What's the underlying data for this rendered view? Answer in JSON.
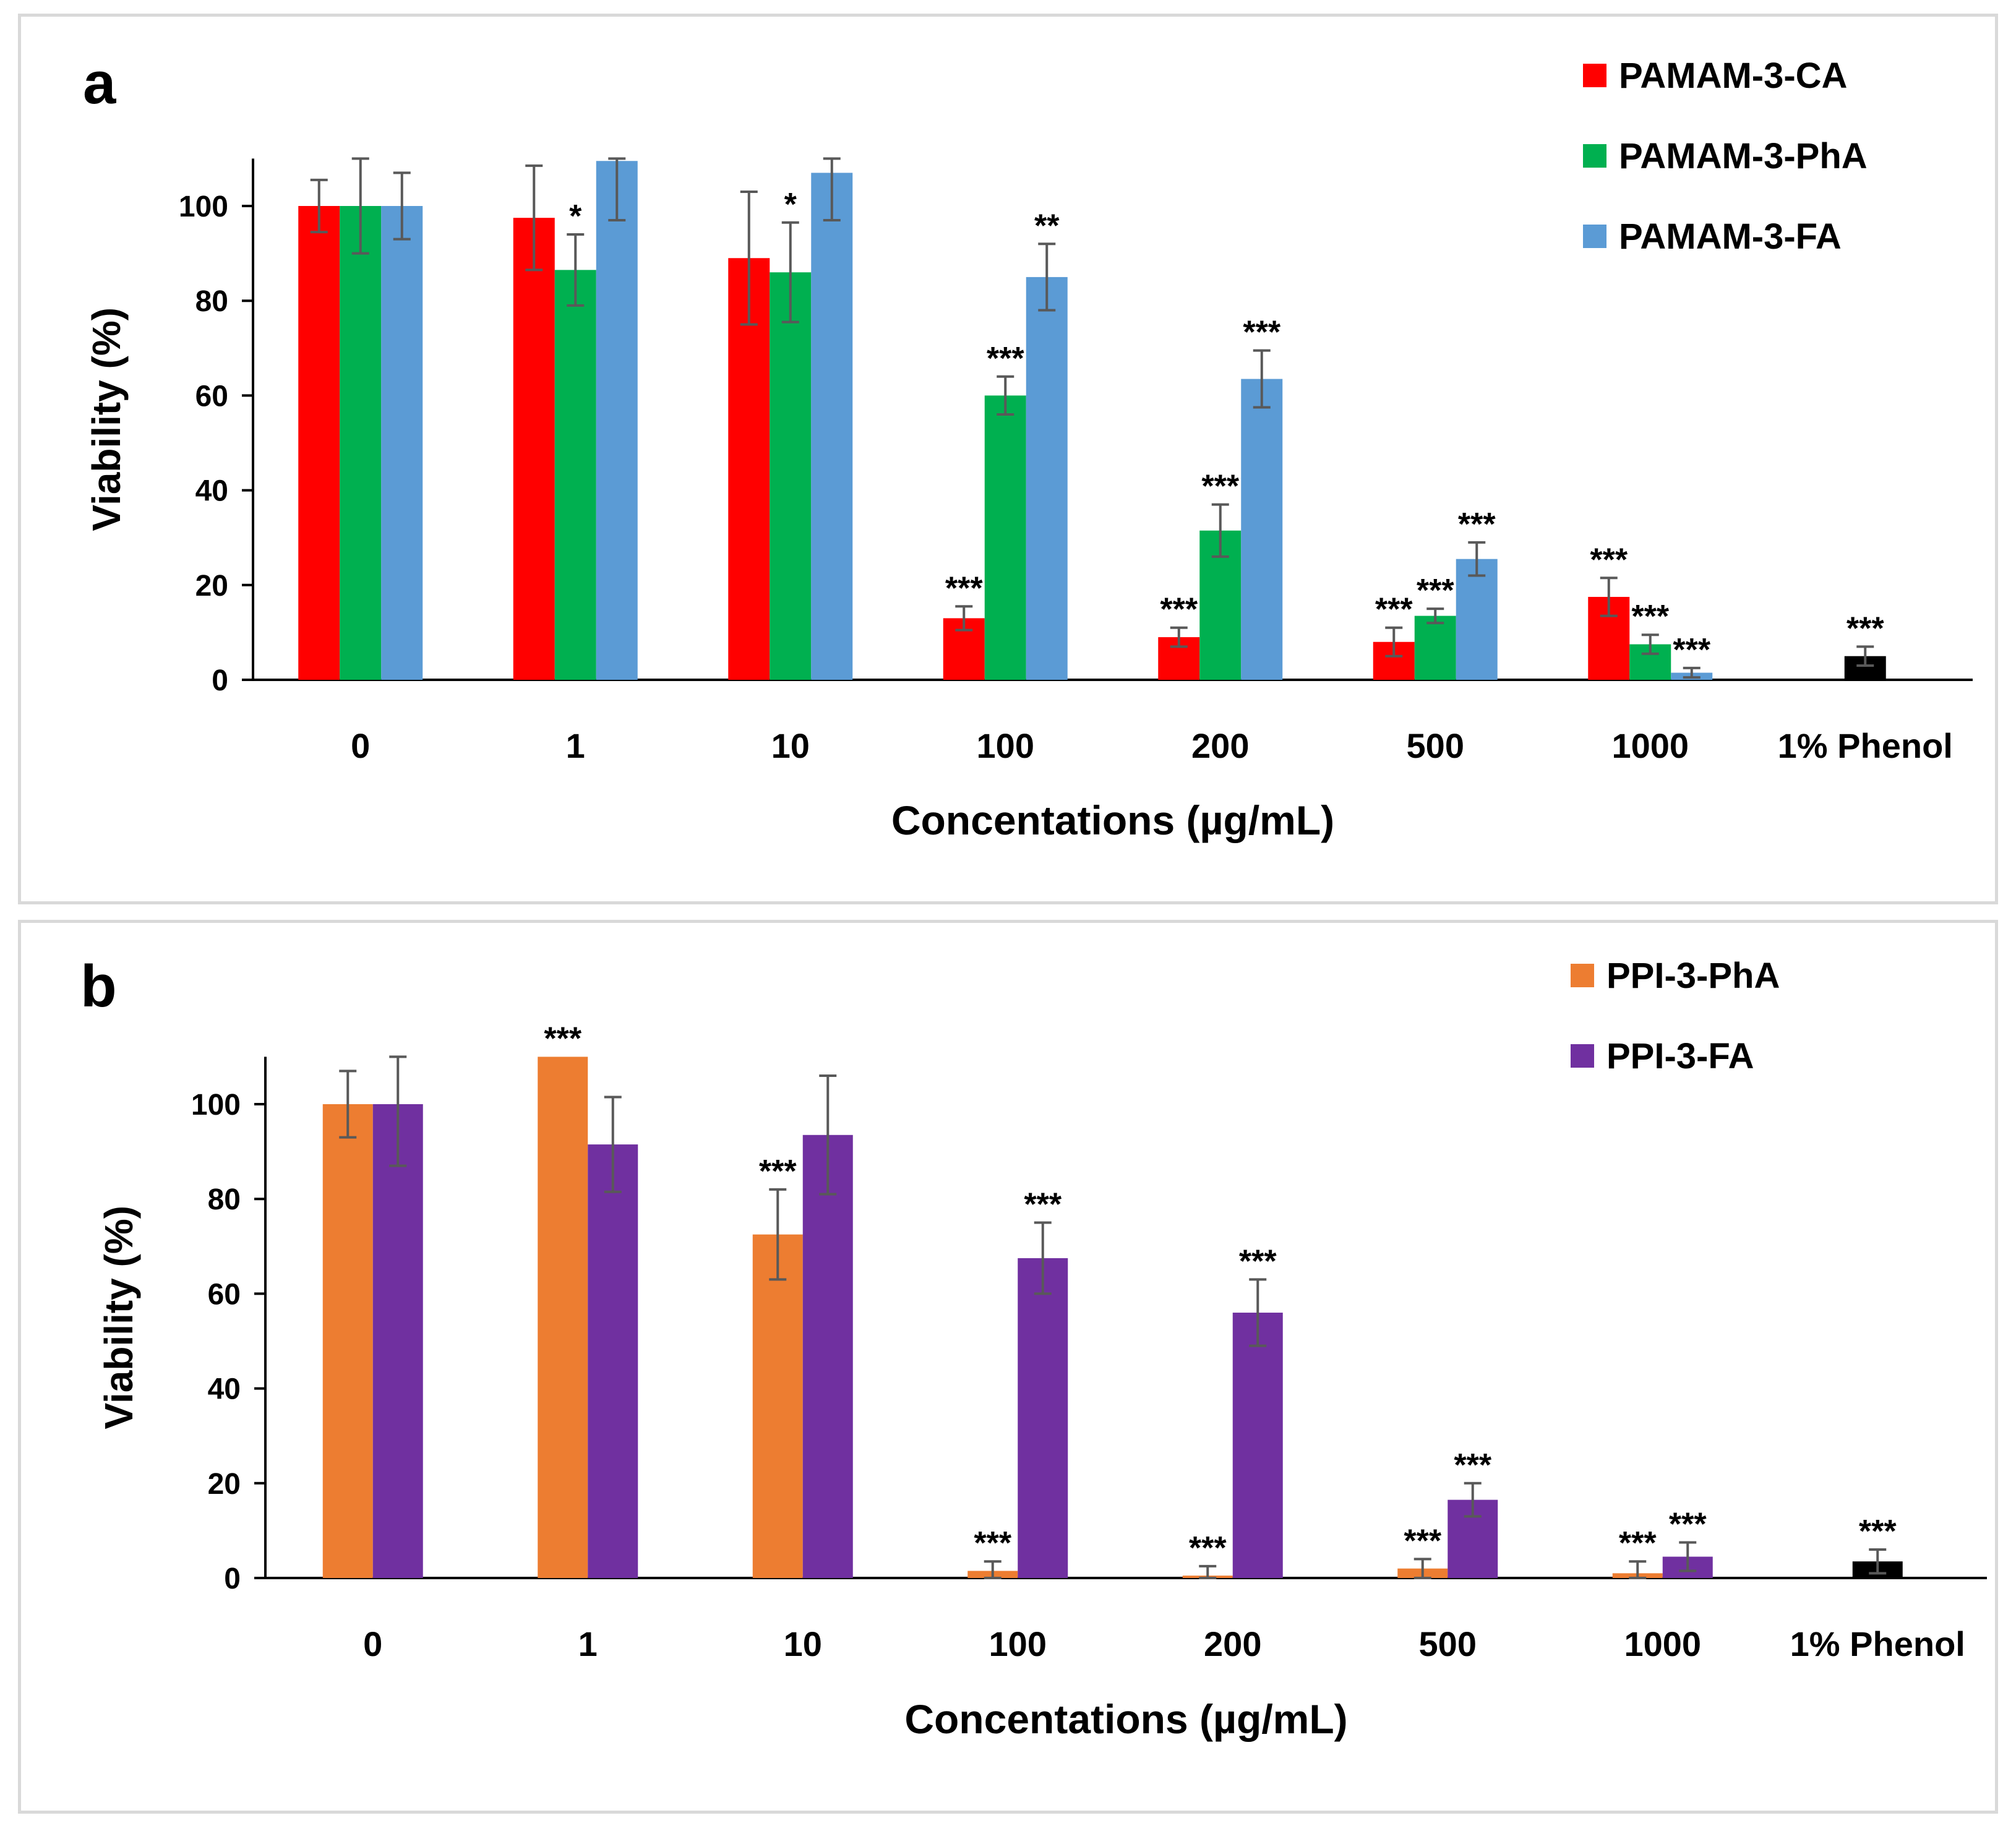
{
  "chart_data": [
    {
      "panel_label": "a",
      "type": "bar",
      "xlabel": "Concentations  (µg/mL)",
      "ylabel": "Viability (%)",
      "ylim": [
        0,
        110
      ],
      "yticks": [
        0,
        20,
        40,
        60,
        80,
        100
      ],
      "categories": [
        "0",
        "1",
        "10",
        "100",
        "200",
        "500",
        "1000",
        "1% Phenol"
      ],
      "legend_position": "top-right",
      "series": [
        {
          "name": "PAMAM-3-CA",
          "color": "#ff0000",
          "values": [
            100,
            97.5,
            89,
            13,
            9,
            8,
            17.5,
            null
          ],
          "errors": [
            5.5,
            11,
            14,
            2.5,
            2,
            3,
            4,
            null
          ],
          "sig": [
            "",
            "",
            "",
            "***",
            "***",
            "***",
            "***",
            ""
          ]
        },
        {
          "name": "PAMAM-3-PhA",
          "color": "#00b050",
          "values": [
            100,
            86.5,
            86,
            60,
            31.5,
            13.5,
            7.5,
            null
          ],
          "errors": [
            10,
            7.5,
            10.5,
            4,
            5.5,
            1.5,
            2,
            null
          ],
          "sig": [
            "",
            "*",
            "*",
            "***",
            "***",
            "***",
            "***",
            ""
          ]
        },
        {
          "name": "PAMAM-3-FA",
          "color": "#5b9bd5",
          "values": [
            100,
            109.5,
            107,
            85,
            63.5,
            25.5,
            1.5,
            null
          ],
          "errors": [
            7,
            12.5,
            10,
            7,
            6,
            3.5,
            1,
            null
          ],
          "sig": [
            "",
            "",
            "",
            "**",
            "***",
            "***",
            "***",
            ""
          ]
        }
      ],
      "control": {
        "category": "1% Phenol",
        "value": 5,
        "error": 2,
        "sig": "***",
        "color": "#000000"
      }
    },
    {
      "panel_label": "b",
      "type": "bar",
      "xlabel": "Concentations  (µg/mL)",
      "ylabel": "Viability (%)",
      "ylim": [
        0,
        110
      ],
      "yticks": [
        0,
        20,
        40,
        60,
        80,
        100
      ],
      "categories": [
        "0",
        "1",
        "10",
        "100",
        "200",
        "500",
        "1000",
        "1% Phenol"
      ],
      "legend_position": "top-right",
      "series": [
        {
          "name": "PPI-3-PhA",
          "color": "#ed7d31",
          "values": [
            100,
            110,
            72.5,
            1.5,
            0.5,
            2,
            1,
            null
          ],
          "errors": [
            7,
            0,
            9.5,
            2,
            2,
            2,
            2.5,
            null
          ],
          "sig": [
            "",
            "***",
            "***",
            "***",
            "***",
            "***",
            "***",
            ""
          ]
        },
        {
          "name": "PPI-3-FA",
          "color": "#7030a0",
          "values": [
            100,
            91.5,
            93.5,
            67.5,
            56,
            16.5,
            4.5,
            null
          ],
          "errors": [
            13,
            10,
            12.5,
            7.5,
            7,
            3.5,
            3,
            null
          ],
          "sig": [
            "",
            "",
            "",
            "***",
            "***",
            "***",
            "***",
            ""
          ]
        }
      ],
      "control": {
        "category": "1% Phenol",
        "value": 3.5,
        "error": 2.5,
        "sig": "***",
        "color": "#000000"
      }
    }
  ]
}
